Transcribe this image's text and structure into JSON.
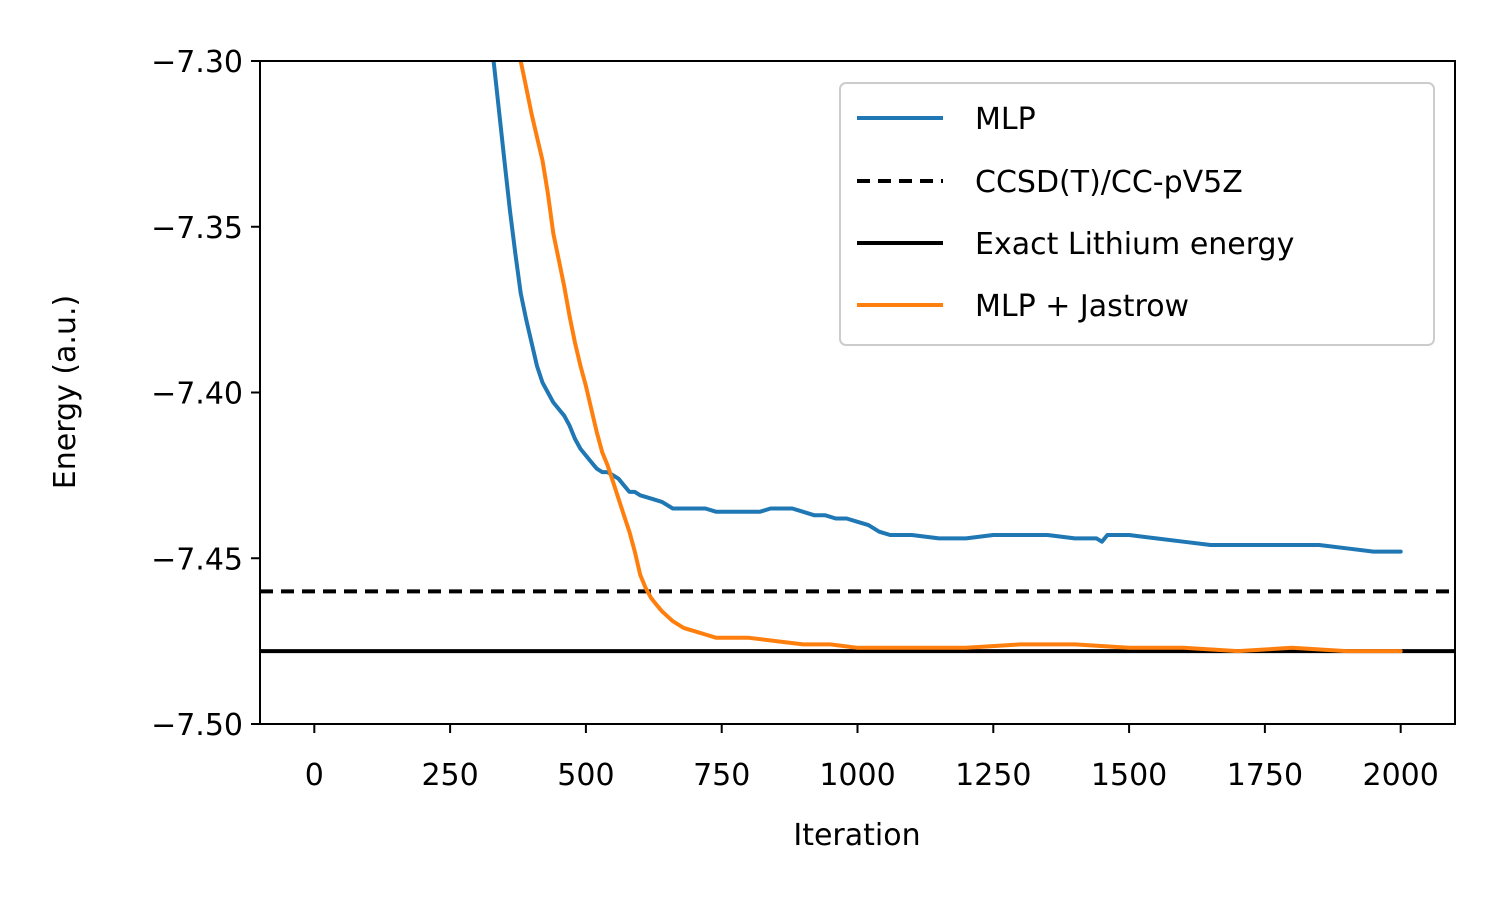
{
  "chart_data": {
    "type": "line",
    "xlabel": "Iteration",
    "ylabel": "Energy (a.u.)",
    "xlim": [
      -100,
      2100
    ],
    "ylim": [
      -7.5,
      -7.3
    ],
    "xticks": [
      0,
      250,
      500,
      750,
      1000,
      1250,
      1500,
      1750,
      2000
    ],
    "xtick_labels": [
      "0",
      "250",
      "500",
      "750",
      "1000",
      "1250",
      "1500",
      "1750",
      "2000"
    ],
    "yticks": [
      -7.5,
      -7.45,
      -7.4,
      -7.35,
      -7.3
    ],
    "ytick_labels": [
      "−7.50",
      "−7.45",
      "−7.40",
      "−7.35",
      "−7.30"
    ],
    "grid": false,
    "legend_position": "top-right",
    "series": [
      {
        "name": "MLP",
        "color": "#1f77b4",
        "style": "solid",
        "x": [
          330,
          340,
          350,
          360,
          370,
          380,
          390,
          400,
          410,
          420,
          430,
          440,
          450,
          460,
          470,
          480,
          490,
          500,
          510,
          520,
          530,
          540,
          550,
          560,
          570,
          580,
          590,
          600,
          620,
          640,
          660,
          680,
          700,
          720,
          740,
          760,
          780,
          800,
          820,
          840,
          860,
          880,
          900,
          920,
          940,
          960,
          980,
          1000,
          1020,
          1040,
          1060,
          1080,
          1100,
          1150,
          1200,
          1250,
          1300,
          1350,
          1400,
          1440,
          1450,
          1460,
          1500,
          1550,
          1600,
          1650,
          1700,
          1750,
          1800,
          1850,
          1900,
          1950,
          2000
        ],
        "y": [
          -7.3,
          -7.315,
          -7.33,
          -7.345,
          -7.358,
          -7.37,
          -7.378,
          -7.385,
          -7.392,
          -7.397,
          -7.4,
          -7.403,
          -7.405,
          -7.407,
          -7.41,
          -7.414,
          -7.417,
          -7.419,
          -7.421,
          -7.423,
          -7.424,
          -7.424,
          -7.425,
          -7.426,
          -7.428,
          -7.43,
          -7.43,
          -7.431,
          -7.432,
          -7.433,
          -7.435,
          -7.435,
          -7.435,
          -7.435,
          -7.436,
          -7.436,
          -7.436,
          -7.436,
          -7.436,
          -7.435,
          -7.435,
          -7.435,
          -7.436,
          -7.437,
          -7.437,
          -7.438,
          -7.438,
          -7.439,
          -7.44,
          -7.442,
          -7.443,
          -7.443,
          -7.443,
          -7.444,
          -7.444,
          -7.443,
          -7.443,
          -7.443,
          -7.444,
          -7.444,
          -7.445,
          -7.443,
          -7.443,
          -7.444,
          -7.445,
          -7.446,
          -7.446,
          -7.446,
          -7.446,
          -7.446,
          -7.447,
          -7.448,
          -7.448
        ]
      },
      {
        "name": "CCSD(T)/CC-pV5Z",
        "color": "#000000",
        "style": "dashed",
        "y": -7.46
      },
      {
        "name": "Exact Lithium energy",
        "color": "#000000",
        "style": "solid",
        "y": -7.478
      },
      {
        "name": "MLP + Jastrow",
        "color": "#ff7f0e",
        "style": "solid",
        "x": [
          380,
          390,
          400,
          410,
          420,
          430,
          440,
          450,
          460,
          470,
          480,
          490,
          500,
          510,
          520,
          530,
          540,
          550,
          560,
          570,
          580,
          590,
          600,
          610,
          620,
          630,
          640,
          660,
          680,
          700,
          720,
          740,
          760,
          780,
          800,
          850,
          900,
          950,
          1000,
          1050,
          1100,
          1200,
          1300,
          1400,
          1500,
          1600,
          1700,
          1800,
          1900,
          2000
        ],
        "y": [
          -7.3,
          -7.308,
          -7.316,
          -7.323,
          -7.33,
          -7.34,
          -7.352,
          -7.36,
          -7.368,
          -7.377,
          -7.385,
          -7.392,
          -7.398,
          -7.405,
          -7.412,
          -7.418,
          -7.422,
          -7.427,
          -7.432,
          -7.437,
          -7.442,
          -7.448,
          -7.455,
          -7.459,
          -7.462,
          -7.464,
          -7.466,
          -7.469,
          -7.471,
          -7.472,
          -7.473,
          -7.474,
          -7.474,
          -7.474,
          -7.474,
          -7.475,
          -7.476,
          -7.476,
          -7.477,
          -7.477,
          -7.477,
          -7.477,
          -7.476,
          -7.476,
          -7.477,
          -7.477,
          -7.478,
          -7.477,
          -7.478,
          -7.478
        ]
      }
    ]
  }
}
